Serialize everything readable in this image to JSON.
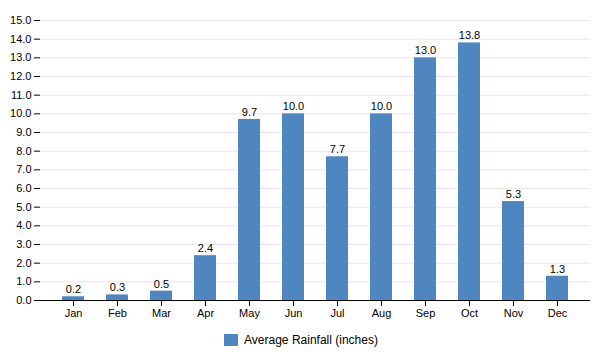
{
  "chart_data": {
    "type": "bar",
    "categories": [
      "Jan",
      "Feb",
      "Mar",
      "Apr",
      "May",
      "Jun",
      "Jul",
      "Aug",
      "Sep",
      "Oct",
      "Nov",
      "Dec"
    ],
    "series": [
      {
        "name": "Average Rainfall (inches)",
        "color": "#4F86C0",
        "values": [
          0.2,
          0.3,
          0.5,
          2.4,
          9.7,
          10.0,
          7.7,
          10.0,
          13.0,
          13.8,
          5.3,
          1.3
        ],
        "value_labels": [
          "0.2",
          "0.3",
          "0.5",
          "2.4",
          "9.7",
          "10.0",
          "7.7",
          "10.0",
          "13.0",
          "13.8",
          "5.3",
          "1.3"
        ]
      }
    ],
    "ylim": [
      0,
      15.0
    ],
    "yticks": [
      {
        "value": 0.0,
        "label": "0.0"
      },
      {
        "value": 1.0,
        "label": "1.0"
      },
      {
        "value": 2.0,
        "label": "2.0"
      },
      {
        "value": 3.0,
        "label": "3.0"
      },
      {
        "value": 4.0,
        "label": "4.0"
      },
      {
        "value": 5.0,
        "label": "5.0"
      },
      {
        "value": 6.0,
        "label": "6.0"
      },
      {
        "value": 7.0,
        "label": "7.0"
      },
      {
        "value": 8.0,
        "label": "8.0"
      },
      {
        "value": 9.0,
        "label": "9.0"
      },
      {
        "value": 10.0,
        "label": "10.0"
      },
      {
        "value": 11.0,
        "label": "11.0"
      },
      {
        "value": 12.0,
        "label": "12.0"
      },
      {
        "value": 13.0,
        "label": "13.0"
      },
      {
        "value": 14.0,
        "label": "14.0"
      },
      {
        "value": 15.0,
        "label": "15.0"
      }
    ],
    "grid": true,
    "data_labels": true,
    "legend": "bottom"
  }
}
